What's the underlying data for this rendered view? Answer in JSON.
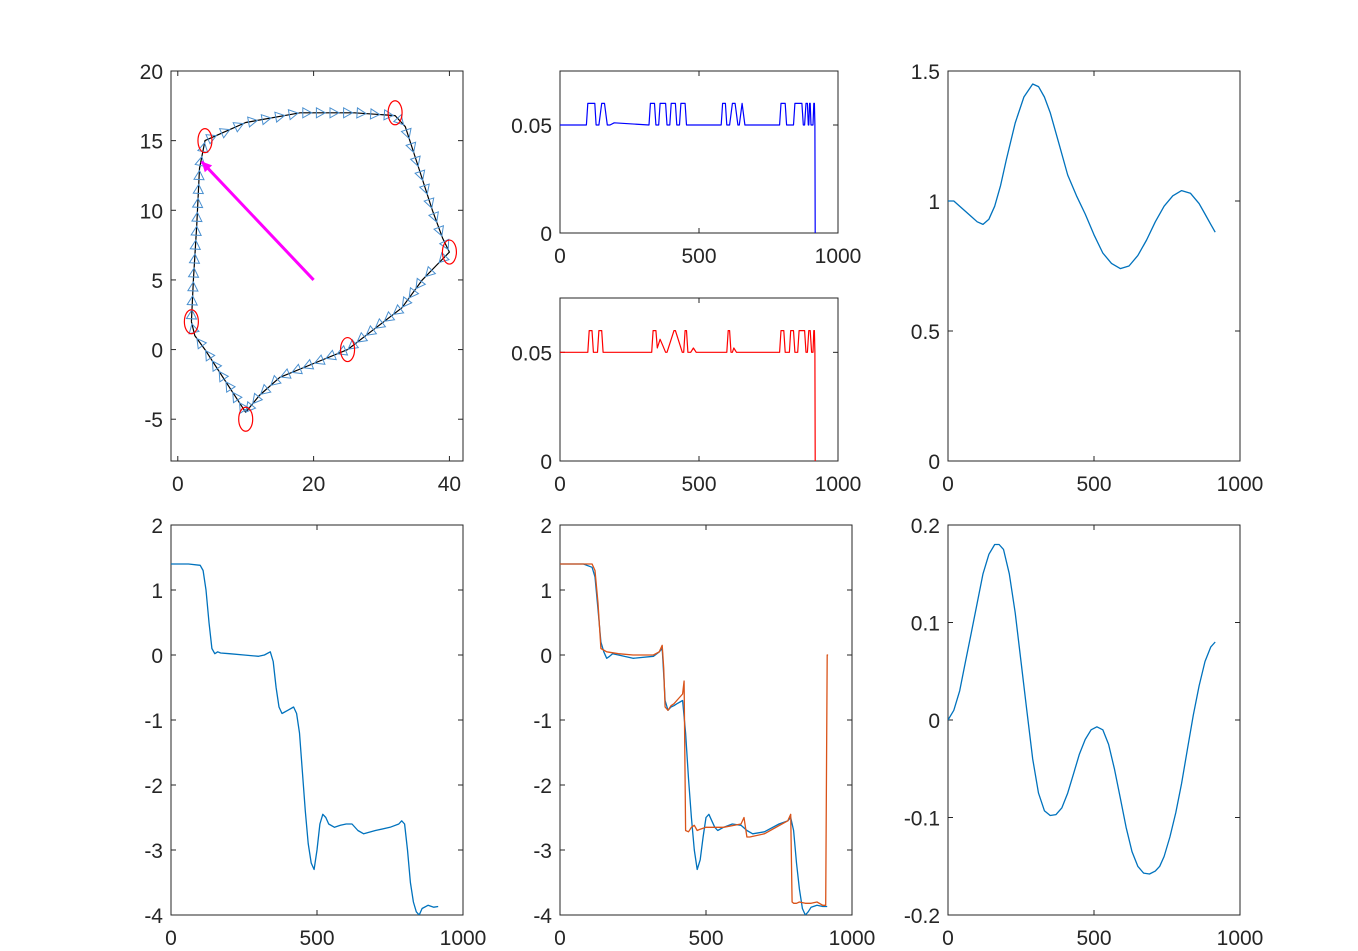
{
  "figure": {
    "colors": {
      "axes": "#262626",
      "blue_series": "#0000ff",
      "red_series": "#ff0000",
      "matlab_blue": "#0072bd",
      "matlab_orange": "#d95319",
      "triangle_marker": "#4a90d0",
      "path": "#000000",
      "arrow": "#ff00ff",
      "circle_marker": "#ff0000"
    }
  },
  "chart_data": [
    {
      "id": "trajectory",
      "type": "line",
      "xlim": [
        -1,
        42
      ],
      "ylim": [
        -8,
        20
      ],
      "xticks": [
        "0",
        "20",
        "40"
      ],
      "xtick_values": [
        0,
        20,
        40
      ],
      "yticks": [
        "-5",
        "0",
        "5",
        "10",
        "15",
        "20"
      ],
      "ytick_values": [
        -5,
        0,
        5,
        10,
        15,
        20
      ],
      "path": [
        [
          2,
          2
        ],
        [
          2.3,
          5
        ],
        [
          2.8,
          9
        ],
        [
          3.2,
          13
        ],
        [
          4,
          15
        ],
        [
          10,
          16.3
        ],
        [
          18,
          17
        ],
        [
          26,
          17
        ],
        [
          32,
          16.8
        ],
        [
          33.5,
          16
        ],
        [
          35.5,
          13
        ],
        [
          37.5,
          10
        ],
        [
          39,
          8
        ],
        [
          40,
          7
        ],
        [
          38,
          6
        ],
        [
          36,
          5
        ],
        [
          33,
          3
        ],
        [
          29,
          1.5
        ],
        [
          25,
          0
        ],
        [
          20,
          -1
        ],
        [
          15,
          -2
        ],
        [
          12,
          -3.3
        ],
        [
          10,
          -4.5
        ],
        [
          8,
          -3
        ],
        [
          6,
          -1.5
        ],
        [
          4,
          0
        ],
        [
          2.5,
          1
        ],
        [
          2,
          2
        ]
      ],
      "waypoints": [
        [
          2,
          2
        ],
        [
          4,
          15
        ],
        [
          32,
          17
        ],
        [
          40,
          7
        ],
        [
          25,
          0
        ],
        [
          10,
          -5
        ]
      ],
      "arrow": {
        "from": [
          20,
          5
        ],
        "to": [
          3.5,
          13.5
        ]
      }
    },
    {
      "id": "signal-blue",
      "type": "line",
      "xlim": [
        0,
        1000
      ],
      "ylim": [
        0,
        0.075
      ],
      "xticks": [
        "0",
        "500",
        "1000"
      ],
      "xtick_values": [
        0,
        500,
        1000
      ],
      "yticks": [
        "0",
        "0.05"
      ],
      "ytick_values": [
        0,
        0.05
      ],
      "x": [
        0,
        95,
        100,
        125,
        130,
        140,
        150,
        160,
        170,
        180,
        195,
        320,
        325,
        340,
        345,
        355,
        360,
        380,
        385,
        395,
        400,
        415,
        420,
        430,
        435,
        450,
        455,
        580,
        585,
        595,
        600,
        610,
        620,
        630,
        640,
        645,
        655,
        665,
        750,
        755,
        790,
        795,
        810,
        815,
        840,
        845,
        870,
        875,
        880,
        885,
        890,
        893,
        895,
        898,
        900,
        903,
        910,
        913,
        915,
        917,
        918
      ],
      "y": [
        0.05,
        0.05,
        0.06,
        0.06,
        0.05,
        0.05,
        0.06,
        0.06,
        0.05,
        0.05,
        0.051,
        0.05,
        0.06,
        0.06,
        0.05,
        0.05,
        0.06,
        0.06,
        0.05,
        0.05,
        0.06,
        0.06,
        0.05,
        0.05,
        0.06,
        0.06,
        0.05,
        0.05,
        0.06,
        0.06,
        0.05,
        0.05,
        0.06,
        0.06,
        0.05,
        0.05,
        0.06,
        0.05,
        0.05,
        0.05,
        0.05,
        0.06,
        0.06,
        0.05,
        0.05,
        0.06,
        0.06,
        0.05,
        0.05,
        0.06,
        0.06,
        0.05,
        0.05,
        0.06,
        0.06,
        0.05,
        0.05,
        0.06,
        0.06,
        0.05,
        0
      ]
    },
    {
      "id": "signal-red",
      "type": "line",
      "xlim": [
        0,
        1000
      ],
      "ylim": [
        0,
        0.075
      ],
      "xticks": [
        "0",
        "500",
        "1000"
      ],
      "xtick_values": [
        0,
        500,
        1000
      ],
      "yticks": [
        "0",
        "0.05"
      ],
      "ytick_values": [
        0,
        0.05
      ],
      "x": [
        0,
        100,
        105,
        115,
        120,
        135,
        140,
        150,
        155,
        330,
        335,
        345,
        350,
        360,
        370,
        380,
        385,
        410,
        415,
        440,
        445,
        450,
        455,
        460,
        470,
        480,
        490,
        600,
        605,
        610,
        615,
        620,
        625,
        635,
        645,
        650,
        790,
        795,
        805,
        810,
        825,
        830,
        840,
        845,
        855,
        860,
        880,
        885,
        890,
        895,
        900,
        905,
        910,
        913,
        915,
        917,
        918
      ],
      "y": [
        0.05,
        0.05,
        0.06,
        0.06,
        0.05,
        0.05,
        0.06,
        0.06,
        0.05,
        0.05,
        0.06,
        0.06,
        0.052,
        0.056,
        0.053,
        0.05,
        0.05,
        0.06,
        0.06,
        0.05,
        0.05,
        0.06,
        0.06,
        0.05,
        0.05,
        0.052,
        0.05,
        0.05,
        0.06,
        0.06,
        0.05,
        0.05,
        0.052,
        0.05,
        0.05,
        0.05,
        0.05,
        0.06,
        0.06,
        0.05,
        0.05,
        0.06,
        0.06,
        0.05,
        0.05,
        0.06,
        0.06,
        0.05,
        0.05,
        0.06,
        0.06,
        0.05,
        0.05,
        0.06,
        0.06,
        0.05,
        0
      ]
    },
    {
      "id": "speed-smooth",
      "type": "line",
      "xlim": [
        0,
        1000
      ],
      "ylim": [
        0,
        1.5
      ],
      "xticks": [
        "0",
        "500",
        "1000"
      ],
      "xtick_values": [
        0,
        500,
        1000
      ],
      "yticks": [
        "0",
        "0.5",
        "1",
        "1.5"
      ],
      "ytick_values": [
        0,
        0.5,
        1,
        1.5
      ],
      "x": [
        0,
        20,
        40,
        60,
        80,
        100,
        120,
        140,
        160,
        180,
        200,
        230,
        260,
        290,
        310,
        330,
        350,
        380,
        410,
        440,
        470,
        500,
        530,
        560,
        590,
        620,
        650,
        680,
        710,
        740,
        770,
        800,
        830,
        860,
        880,
        900,
        915
      ],
      "y": [
        1.0,
        1.0,
        0.98,
        0.96,
        0.94,
        0.92,
        0.91,
        0.93,
        0.98,
        1.06,
        1.16,
        1.3,
        1.4,
        1.45,
        1.44,
        1.4,
        1.34,
        1.22,
        1.1,
        1.02,
        0.95,
        0.87,
        0.8,
        0.76,
        0.74,
        0.75,
        0.79,
        0.85,
        0.92,
        0.98,
        1.02,
        1.04,
        1.03,
        0.99,
        0.95,
        0.91,
        0.88
      ]
    },
    {
      "id": "heading",
      "type": "line",
      "xlim": [
        0,
        1000
      ],
      "ylim": [
        -4,
        2
      ],
      "xticks": [
        "0",
        "500",
        "1000"
      ],
      "xtick_values": [
        0,
        500,
        1000
      ],
      "yticks": [
        "-4",
        "-3",
        "-2",
        "-1",
        "0",
        "1",
        "2"
      ],
      "ytick_values": [
        -4,
        -3,
        -2,
        -1,
        0,
        1,
        2
      ],
      "x": [
        0,
        60,
        100,
        110,
        120,
        130,
        140,
        150,
        160,
        170,
        200,
        250,
        300,
        320,
        340,
        350,
        360,
        370,
        380,
        400,
        420,
        430,
        440,
        450,
        460,
        470,
        480,
        490,
        500,
        510,
        520,
        530,
        540,
        560,
        580,
        600,
        620,
        640,
        660,
        700,
        750,
        780,
        790,
        800,
        810,
        820,
        830,
        840,
        850,
        860,
        880,
        900,
        915
      ],
      "y": [
        1.4,
        1.4,
        1.38,
        1.3,
        1.0,
        0.5,
        0.1,
        0.02,
        0.05,
        0.03,
        0.02,
        0.0,
        -0.02,
        0.0,
        0.05,
        -0.1,
        -0.5,
        -0.8,
        -0.9,
        -0.85,
        -0.8,
        -0.9,
        -1.2,
        -1.8,
        -2.4,
        -2.9,
        -3.2,
        -3.3,
        -3.0,
        -2.6,
        -2.45,
        -2.5,
        -2.6,
        -2.65,
        -2.62,
        -2.6,
        -2.6,
        -2.7,
        -2.75,
        -2.7,
        -2.65,
        -2.6,
        -2.55,
        -2.6,
        -3.0,
        -3.5,
        -3.8,
        -3.95,
        -4.0,
        -3.9,
        -3.85,
        -3.88,
        -3.87
      ]
    },
    {
      "id": "heading-compare",
      "type": "line",
      "xlim": [
        0,
        1000
      ],
      "ylim": [
        -4,
        2
      ],
      "xticks": [
        "0",
        "500",
        "1000"
      ],
      "xtick_values": [
        0,
        500,
        1000
      ],
      "yticks": [
        "-4",
        "-3",
        "-2",
        "-1",
        "0",
        "1",
        "2"
      ],
      "ytick_values": [
        -4,
        -3,
        -2,
        -1,
        0,
        1,
        2
      ],
      "series": [
        {
          "color_key": "matlab_blue",
          "x": [
            0,
            80,
            110,
            120,
            130,
            140,
            150,
            160,
            170,
            180,
            200,
            250,
            320,
            340,
            350,
            355,
            360,
            370,
            380,
            390,
            400,
            420,
            430,
            440,
            450,
            460,
            470,
            480,
            490,
            500,
            510,
            520,
            530,
            540,
            560,
            590,
            620,
            640,
            660,
            700,
            750,
            780,
            790,
            800,
            810,
            820,
            830,
            840,
            850,
            860,
            880,
            900,
            915
          ],
          "y": [
            1.4,
            1.4,
            1.35,
            1.2,
            0.7,
            0.2,
            0.05,
            -0.05,
            -0.02,
            0.02,
            0.0,
            -0.05,
            -0.02,
            0.05,
            0.1,
            -0.3,
            -0.7,
            -0.85,
            -0.8,
            -0.78,
            -0.75,
            -0.7,
            -1.2,
            -1.9,
            -2.5,
            -3.0,
            -3.3,
            -3.15,
            -2.8,
            -2.5,
            -2.45,
            -2.55,
            -2.65,
            -2.7,
            -2.65,
            -2.6,
            -2.62,
            -2.7,
            -2.75,
            -2.72,
            -2.6,
            -2.55,
            -2.5,
            -2.7,
            -3.2,
            -3.6,
            -3.9,
            -4.0,
            -3.95,
            -3.88,
            -3.85,
            -3.87,
            -3.87
          ]
        },
        {
          "color_key": "matlab_orange",
          "x": [
            0,
            110,
            120,
            130,
            140,
            160,
            200,
            250,
            320,
            340,
            350,
            355,
            360,
            370,
            380,
            390,
            400,
            420,
            425,
            430,
            440,
            450,
            460,
            470,
            480,
            500,
            560,
            620,
            630,
            640,
            650,
            700,
            760,
            780,
            790,
            795,
            800,
            810,
            820,
            840,
            860,
            880,
            900,
            910,
            913,
            915,
            918
          ],
          "y": [
            1.4,
            1.4,
            1.3,
            0.8,
            0.1,
            0.05,
            0.02,
            0.0,
            0.0,
            0.05,
            0.15,
            -0.2,
            -0.8,
            -0.85,
            -0.78,
            -0.75,
            -0.7,
            -0.6,
            -0.4,
            -2.7,
            -2.72,
            -2.65,
            -2.62,
            -2.7,
            -2.68,
            -2.65,
            -2.65,
            -2.6,
            -2.5,
            -2.8,
            -2.8,
            -2.75,
            -2.6,
            -2.55,
            -2.45,
            -3.8,
            -3.82,
            -3.82,
            -3.8,
            -3.82,
            -3.82,
            -3.8,
            -3.85,
            -3.85,
            -1.5,
            0.0,
            0.0
          ]
        }
      ]
    },
    {
      "id": "yaw-rate",
      "type": "line",
      "xlim": [
        0,
        1000
      ],
      "ylim": [
        -0.2,
        0.2
      ],
      "xticks": [
        "0",
        "500",
        "1000"
      ],
      "xtick_values": [
        0,
        500,
        1000
      ],
      "yticks": [
        "-0.2",
        "-0.1",
        "0",
        "0.1",
        "0.2"
      ],
      "ytick_values": [
        -0.2,
        -0.1,
        0,
        0.1,
        0.2
      ],
      "x": [
        0,
        20,
        40,
        60,
        80,
        100,
        120,
        140,
        160,
        175,
        190,
        210,
        230,
        250,
        270,
        290,
        310,
        330,
        350,
        370,
        390,
        410,
        430,
        450,
        470,
        490,
        510,
        530,
        550,
        570,
        590,
        610,
        630,
        650,
        670,
        690,
        710,
        725,
        740,
        760,
        780,
        800,
        820,
        840,
        860,
        880,
        900,
        915
      ],
      "y": [
        0.0,
        0.01,
        0.03,
        0.06,
        0.09,
        0.12,
        0.15,
        0.17,
        0.18,
        0.18,
        0.175,
        0.15,
        0.11,
        0.06,
        0.01,
        -0.04,
        -0.075,
        -0.093,
        -0.098,
        -0.097,
        -0.09,
        -0.075,
        -0.055,
        -0.035,
        -0.02,
        -0.01,
        -0.007,
        -0.01,
        -0.025,
        -0.05,
        -0.08,
        -0.11,
        -0.135,
        -0.15,
        -0.157,
        -0.158,
        -0.155,
        -0.15,
        -0.14,
        -0.12,
        -0.095,
        -0.065,
        -0.03,
        0.005,
        0.035,
        0.06,
        0.075,
        0.08
      ]
    }
  ]
}
